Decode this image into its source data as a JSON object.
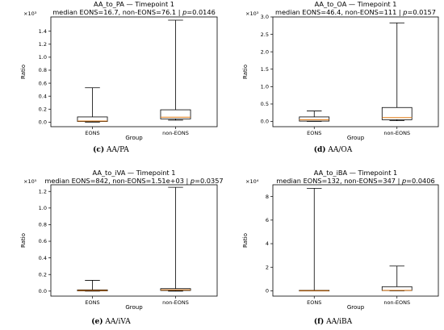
{
  "chart_data": [
    {
      "type": "boxplot",
      "title": "AA_to_PA — Timepoint 1",
      "subtitle_prefix": "median EONS=16.7, non-EONS=76.1 | ",
      "p_label": "p",
      "p_value": "=0.0146",
      "xlabel": "Group",
      "ylabel": "Ratio",
      "scale_label": "×10³",
      "ylim": [
        -0.07,
        1.62
      ],
      "yticks": [
        "0.0",
        "0.2",
        "0.4",
        "0.6",
        "0.8",
        "1.0",
        "1.2",
        "1.4"
      ],
      "ytick_values": [
        0,
        0.2,
        0.4,
        0.6,
        0.8,
        1.0,
        1.2,
        1.4
      ],
      "categories": [
        "EONS",
        "non-EONS"
      ],
      "boxes": [
        {
          "min": 0.0,
          "q1": 0.01,
          "median": 0.017,
          "q3": 0.08,
          "max": 0.53
        },
        {
          "min": 0.03,
          "q1": 0.05,
          "median": 0.076,
          "q3": 0.19,
          "max": 1.57
        }
      ],
      "caption_label": "(c)",
      "caption_text": "AA/PA"
    },
    {
      "type": "boxplot",
      "title": "AA_to_OA — Timepoint 1",
      "subtitle_prefix": "median EONS=46.4, non-EONS=111 | ",
      "p_label": "p",
      "p_value": "=0.0157",
      "xlabel": "Group",
      "ylabel": "Ratio",
      "scale_label": "×10³",
      "ylim": [
        -0.15,
        3.0
      ],
      "yticks": [
        "0.0",
        "0.5",
        "1.0",
        "1.5",
        "2.0",
        "2.5",
        "3.0"
      ],
      "ytick_values": [
        0,
        0.5,
        1.0,
        1.5,
        2.0,
        2.5,
        3.0
      ],
      "categories": [
        "EONS",
        "non-EONS"
      ],
      "boxes": [
        {
          "min": 0.0,
          "q1": 0.01,
          "median": 0.046,
          "q3": 0.13,
          "max": 0.3
        },
        {
          "min": 0.02,
          "q1": 0.05,
          "median": 0.111,
          "q3": 0.4,
          "max": 2.83
        }
      ],
      "caption_label": "(d)",
      "caption_text": "AA/OA"
    },
    {
      "type": "boxplot",
      "title": "AA_to_iVA — Timepoint 1",
      "subtitle_prefix": "median EONS=842, non-EONS=1.51e+03 | ",
      "p_label": "p",
      "p_value": "=0.0357",
      "xlabel": "Group",
      "ylabel": "Ratio",
      "scale_label": "×10⁵",
      "ylim": [
        -0.06,
        1.28
      ],
      "yticks": [
        "0.0",
        "0.2",
        "0.4",
        "0.6",
        "0.8",
        "1.0",
        "1.2"
      ],
      "ytick_values": [
        0,
        0.2,
        0.4,
        0.6,
        0.8,
        1.0,
        1.2
      ],
      "categories": [
        "EONS",
        "non-EONS"
      ],
      "boxes": [
        {
          "min": 0.0,
          "q1": 0.003,
          "median": 0.0084,
          "q3": 0.015,
          "max": 0.13
        },
        {
          "min": 0.0,
          "q1": 0.008,
          "median": 0.0151,
          "q3": 0.03,
          "max": 1.25
        }
      ],
      "caption_label": "(e)",
      "caption_text": "AA/iVA"
    },
    {
      "type": "boxplot",
      "title": "AA_to_iBA — Timepoint 1",
      "subtitle_prefix": "median EONS=132, non-EONS=347 | ",
      "p_label": "p",
      "p_value": "=0.0406",
      "xlabel": "Group",
      "ylabel": "Ratio",
      "scale_label": "×10⁴",
      "ylim": [
        -0.45,
        9.0
      ],
      "yticks": [
        "0",
        "2",
        "4",
        "6",
        "8"
      ],
      "ytick_values": [
        0,
        2,
        4,
        6,
        8
      ],
      "categories": [
        "EONS",
        "non-EONS"
      ],
      "boxes": [
        {
          "min": 0.0,
          "q1": 0.005,
          "median": 0.0132,
          "q3": 0.04,
          "max": 8.7
        },
        {
          "min": 0.0,
          "q1": 0.02,
          "median": 0.0347,
          "q3": 0.35,
          "max": 2.1
        }
      ],
      "caption_label": "(f)",
      "caption_text": "AA/iBA"
    }
  ],
  "colors": {
    "box_edge": "#000000",
    "median": "#e07b17",
    "frame": "#000000"
  }
}
